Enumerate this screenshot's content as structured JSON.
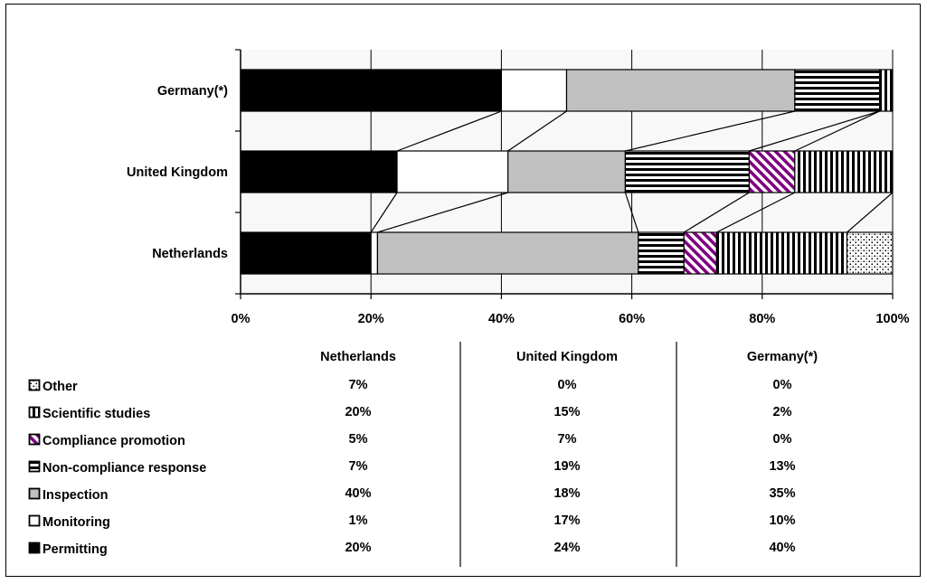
{
  "chart_data": {
    "type": "bar",
    "orientation": "horizontal",
    "stacked": "percent",
    "categories": [
      "Germany(*)",
      "United Kingdom",
      "Netherlands"
    ],
    "xlim": [
      0,
      100
    ],
    "xtick_labels": [
      "0%",
      "20%",
      "40%",
      "60%",
      "80%",
      "100%"
    ],
    "grid": true,
    "series_lines": true,
    "series": [
      {
        "name": "Permitting",
        "pattern": "solid-black",
        "values": [
          40,
          24,
          20
        ]
      },
      {
        "name": "Monitoring",
        "pattern": "white",
        "values": [
          10,
          17,
          1
        ]
      },
      {
        "name": "Inspection",
        "pattern": "grey",
        "values": [
          35,
          18,
          40
        ]
      },
      {
        "name": "Non-compliance response",
        "pattern": "horizontal-stripes",
        "values": [
          13,
          19,
          7
        ]
      },
      {
        "name": "Compliance promotion",
        "pattern": "purple-diagonal",
        "values": [
          0,
          7,
          5
        ]
      },
      {
        "name": "Scientific studies",
        "pattern": "vertical-stripes",
        "values": [
          2,
          15,
          20
        ]
      },
      {
        "name": "Other",
        "pattern": "dots",
        "values": [
          0,
          0,
          7
        ]
      }
    ],
    "table": {
      "columns": [
        "Netherlands",
        "United Kingdom",
        "Germany(*)"
      ],
      "rows": [
        {
          "label": "Other",
          "pattern": "dots",
          "values": [
            "7%",
            "0%",
            "0%"
          ]
        },
        {
          "label": "Scientific studies",
          "pattern": "vertical-stripes",
          "values": [
            "20%",
            "15%",
            "2%"
          ]
        },
        {
          "label": "Compliance promotion",
          "pattern": "purple-diagonal",
          "values": [
            "5%",
            "7%",
            "0%"
          ]
        },
        {
          "label": "Non-compliance response",
          "pattern": "horizontal-stripes",
          "values": [
            "7%",
            "19%",
            "13%"
          ]
        },
        {
          "label": "Inspection",
          "pattern": "grey",
          "values": [
            "40%",
            "18%",
            "35%"
          ]
        },
        {
          "label": "Monitoring",
          "pattern": "white",
          "values": [
            "1%",
            "17%",
            "10%"
          ]
        },
        {
          "label": "Permitting",
          "pattern": "solid-black",
          "values": [
            "20%",
            "24%",
            "40%"
          ]
        }
      ]
    },
    "colors": {
      "grey": "#c0c0c0",
      "purple": "#800080",
      "plot_bg": "#f8f8f8"
    }
  }
}
